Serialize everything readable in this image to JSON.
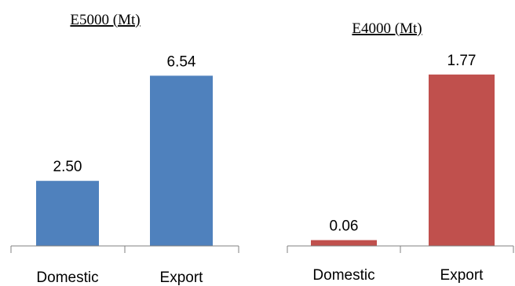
{
  "chart_data": [
    {
      "type": "bar",
      "title": "E5000 (Mt)",
      "categories": [
        "Domestic",
        "Export"
      ],
      "values": [
        2.5,
        6.54
      ],
      "value_labels": [
        "2.50",
        "6.54"
      ],
      "color": "#4F81BD",
      "ylim": [
        0,
        8
      ],
      "grid": false,
      "legend": "none"
    },
    {
      "type": "bar",
      "title": "E4000 (Mt)",
      "categories": [
        "Domestic",
        "Export"
      ],
      "values": [
        0.06,
        1.77
      ],
      "value_labels": [
        "0.06",
        "1.77"
      ],
      "color": "#C0504D",
      "ylim": [
        0,
        2.15
      ],
      "grid": false,
      "legend": "none"
    }
  ]
}
